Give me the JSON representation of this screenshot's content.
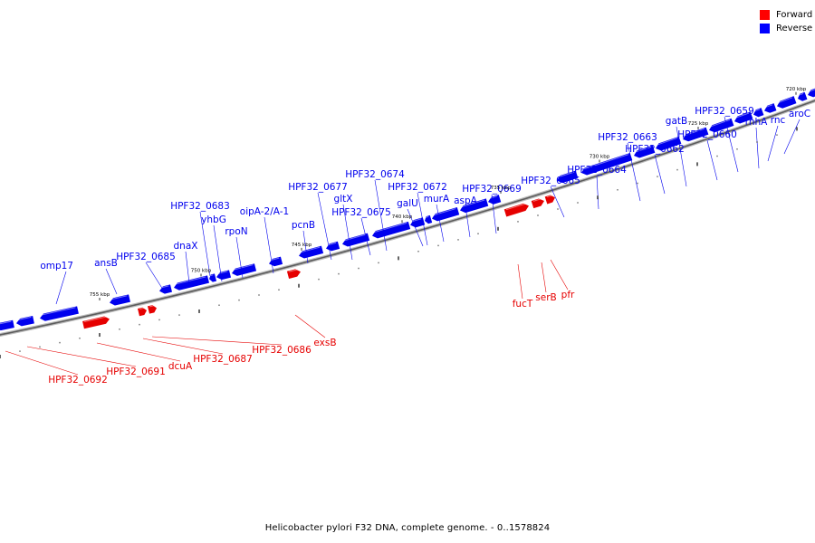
{
  "legend": [
    {
      "label": "Forward",
      "color": "#ff0000"
    },
    {
      "label": "Reverse",
      "color": "#0000ff"
    }
  ],
  "caption": "Helicobacter pylori F32 DNA, complete genome. - 0..1578824",
  "colors": {
    "forward": "#e60000",
    "reverse": "#0000ee",
    "backbone": "#7a7a7a"
  },
  "ticks": [
    "755 kbp",
    "750 kbp",
    "745 kbp",
    "740 kbp",
    "735 kbp",
    "730 kbp",
    "725 kbp",
    "720 kbp"
  ],
  "reverse_genes": [
    "omp17",
    "ansB",
    "HPF32_0685",
    "dnaX",
    "HPF32_0683",
    "yhbG",
    "rpoN",
    "oipA-2/A-1",
    "pcnB",
    "HPF32_0677",
    "gltX",
    "HPF32_0675",
    "HPF32_0674",
    "HPF32_0672",
    "galU",
    "murA",
    "aspA",
    "HPF32_0669",
    "HPF32_0665",
    "HPF32_0664",
    "HPF32_0663",
    "HPF32_0662",
    "gatB",
    "HPF32_0660",
    "HPF32_0659",
    "rnhA",
    "rnc",
    "aroC"
  ],
  "forward_genes": [
    "HPF32_0692",
    "HPF32_0691",
    "dcuA",
    "HPF32_0687",
    "HPF32_0686",
    "exsB",
    "fucT",
    "serB",
    "pfr"
  ]
}
